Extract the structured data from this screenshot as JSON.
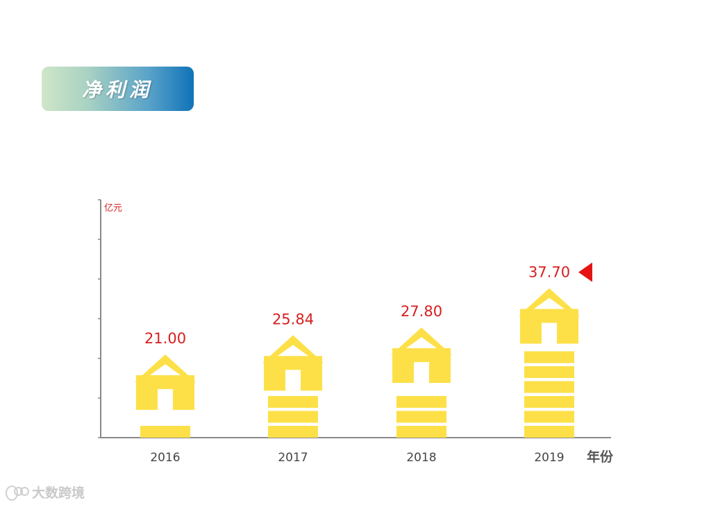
{
  "title": "净利润",
  "watermark": {
    "text": "大数跨境",
    "icon": "logo-icon"
  },
  "chart_data": {
    "type": "bar",
    "categories": [
      "2016",
      "2017",
      "2018",
      "2019"
    ],
    "values": [
      21.0,
      25.84,
      27.8,
      37.7
    ],
    "value_labels": [
      "21.00",
      "25.84",
      "27.80",
      "37.70"
    ],
    "ylabel": "亿元",
    "xlabel": "年份",
    "ylim": [
      0,
      60
    ],
    "grid": false,
    "highlight_index": 3,
    "bar_color": "#fde047",
    "label_color": "#d81e1e",
    "marker_color": "#e41414",
    "axis_color": "#888888"
  }
}
